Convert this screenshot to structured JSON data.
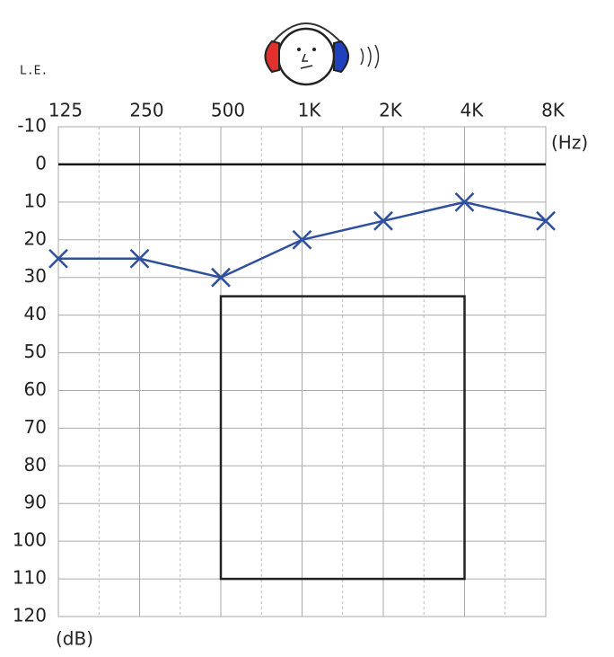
{
  "chart_data": {
    "type": "line",
    "ear_label": "L.E.",
    "x_unit": "(Hz)",
    "y_unit": "(dB)",
    "categories": [
      "125",
      "250",
      "500",
      "1K",
      "2K",
      "4K",
      "8K"
    ],
    "series": [
      {
        "color": "#2f4f9f",
        "marker": "x",
        "values": [
          25,
          25,
          30,
          20,
          15,
          10,
          15
        ]
      }
    ],
    "ylim": [
      -10,
      120
    ],
    "y_inverted": true,
    "yticks": [
      -10,
      0,
      10,
      20,
      30,
      40,
      50,
      60,
      70,
      80,
      90,
      100,
      110,
      120
    ],
    "reference_line": 0,
    "region": {
      "categories": [
        "500",
        "4K"
      ],
      "values": [
        35,
        110
      ]
    },
    "grid": true
  }
}
